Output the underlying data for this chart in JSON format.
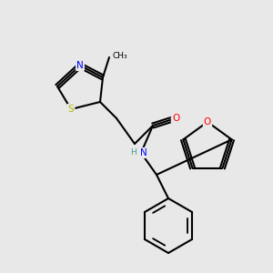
{
  "bg_color": "#e8e8e8",
  "bond_color": "#000000",
  "bond_lw": 1.5,
  "atom_colors": {
    "N": "#0000ff",
    "O": "#ff0000",
    "S": "#b8b800",
    "C": "#000000"
  },
  "font_size": 7.5,
  "font_size_small": 6.5
}
